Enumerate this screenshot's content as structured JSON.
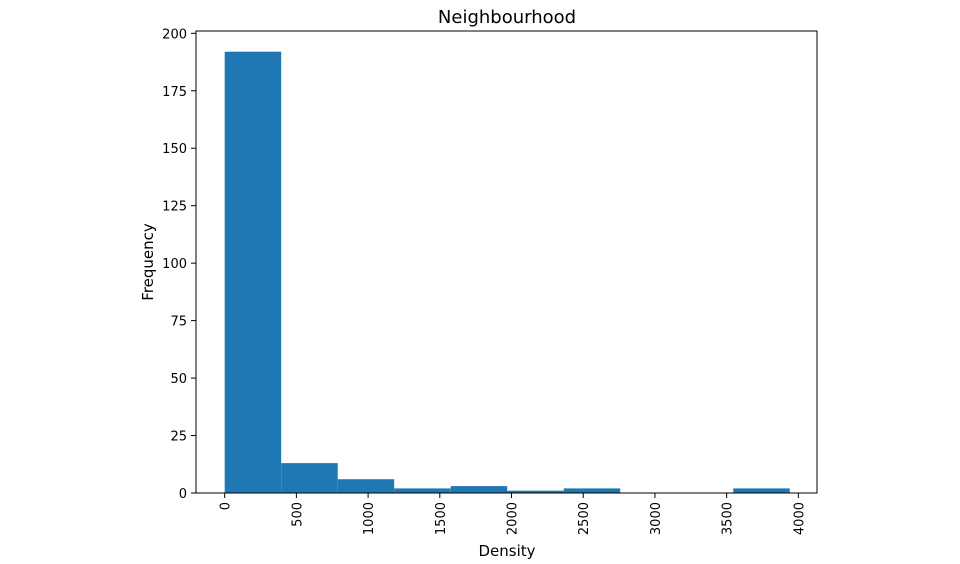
{
  "chart_data": {
    "type": "bar",
    "title": "Neighbourhood",
    "xlabel": "Density",
    "ylabel": "Frequency",
    "xlim": [
      -200,
      4130
    ],
    "ylim": [
      0,
      201
    ],
    "bar_color": "#1f77b4",
    "grid": false,
    "legend": "none",
    "bins": [
      {
        "x0": 0,
        "x1": 394,
        "value": 192
      },
      {
        "x0": 394,
        "x1": 788,
        "value": 13
      },
      {
        "x0": 788,
        "x1": 1182,
        "value": 6
      },
      {
        "x0": 1182,
        "x1": 1576,
        "value": 2
      },
      {
        "x0": 1576,
        "x1": 1970,
        "value": 3
      },
      {
        "x0": 1970,
        "x1": 2364,
        "value": 1
      },
      {
        "x0": 2364,
        "x1": 2758,
        "value": 2
      },
      {
        "x0": 2758,
        "x1": 3152,
        "value": 0
      },
      {
        "x0": 3152,
        "x1": 3546,
        "value": 0
      },
      {
        "x0": 3546,
        "x1": 3940,
        "value": 2
      }
    ],
    "x_ticks": [
      {
        "value": 0,
        "label": "0"
      },
      {
        "value": 500,
        "label": "500"
      },
      {
        "value": 1000,
        "label": "1000"
      },
      {
        "value": 1500,
        "label": "1500"
      },
      {
        "value": 2000,
        "label": "2000"
      },
      {
        "value": 2500,
        "label": "2500"
      },
      {
        "value": 3000,
        "label": "3000"
      },
      {
        "value": 3500,
        "label": "3500"
      },
      {
        "value": 4000,
        "label": "4000"
      }
    ],
    "y_ticks": [
      {
        "value": 0,
        "label": "0"
      },
      {
        "value": 25,
        "label": "25"
      },
      {
        "value": 50,
        "label": "50"
      },
      {
        "value": 75,
        "label": "75"
      },
      {
        "value": 100,
        "label": "100"
      },
      {
        "value": 125,
        "label": "125"
      },
      {
        "value": 150,
        "label": "150"
      },
      {
        "value": 175,
        "label": "175"
      },
      {
        "value": 200,
        "label": "200"
      }
    ]
  }
}
